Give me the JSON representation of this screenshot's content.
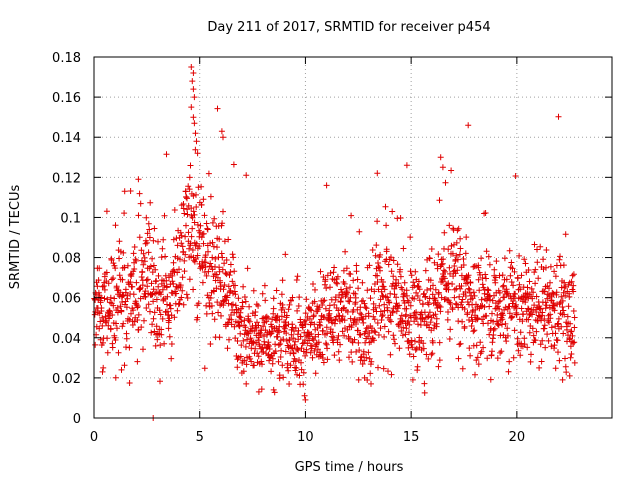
{
  "chart_data": {
    "type": "scatter",
    "title": "Day 211 of 2017, SRMTID for receiver p454",
    "xlabel": "GPS time / hours",
    "ylabel": "SRMTID / TECUs",
    "xlim": [
      0,
      24.5
    ],
    "ylim": [
      0,
      0.18
    ],
    "xticks": [
      0,
      5,
      10,
      15,
      20
    ],
    "xtick_labels": [
      "0",
      "5",
      "10",
      "15",
      "20"
    ],
    "yticks": [
      0,
      0.02,
      0.04,
      0.06,
      0.08,
      0.1,
      0.12,
      0.14,
      0.16,
      0.18
    ],
    "ytick_labels": [
      "0",
      "0.02",
      "0.04",
      "0.06",
      "0.08",
      "0.1",
      "0.12",
      "0.14",
      "0.16",
      "0.18"
    ],
    "grid": true,
    "marker": "+",
    "color": "#e00000",
    "series": [
      {
        "name": "SRMTID",
        "x_range": [
          0,
          22.75
        ],
        "n_points": 1900,
        "profile": [
          {
            "x": 0.0,
            "median": 0.05,
            "spread": 0.012
          },
          {
            "x": 1.0,
            "median": 0.056,
            "spread": 0.013
          },
          {
            "x": 2.0,
            "median": 0.062,
            "spread": 0.014
          },
          {
            "x": 2.5,
            "median": 0.07,
            "spread": 0.016
          },
          {
            "x": 3.0,
            "median": 0.058,
            "spread": 0.014
          },
          {
            "x": 3.5,
            "median": 0.055,
            "spread": 0.012
          },
          {
            "x": 4.0,
            "median": 0.07,
            "spread": 0.015
          },
          {
            "x": 4.5,
            "median": 0.092,
            "spread": 0.018
          },
          {
            "x": 5.0,
            "median": 0.085,
            "spread": 0.02
          },
          {
            "x": 5.5,
            "median": 0.072,
            "spread": 0.016
          },
          {
            "x": 6.0,
            "median": 0.068,
            "spread": 0.016
          },
          {
            "x": 6.5,
            "median": 0.06,
            "spread": 0.014
          },
          {
            "x": 7.0,
            "median": 0.042,
            "spread": 0.01
          },
          {
            "x": 8.0,
            "median": 0.04,
            "spread": 0.01
          },
          {
            "x": 9.0,
            "median": 0.042,
            "spread": 0.011
          },
          {
            "x": 10.0,
            "median": 0.04,
            "spread": 0.011
          },
          {
            "x": 11.0,
            "median": 0.052,
            "spread": 0.013
          },
          {
            "x": 12.0,
            "median": 0.058,
            "spread": 0.014
          },
          {
            "x": 13.0,
            "median": 0.04,
            "spread": 0.011
          },
          {
            "x": 13.5,
            "median": 0.065,
            "spread": 0.016
          },
          {
            "x": 14.0,
            "median": 0.058,
            "spread": 0.014
          },
          {
            "x": 15.0,
            "median": 0.048,
            "spread": 0.012
          },
          {
            "x": 16.0,
            "median": 0.055,
            "spread": 0.014
          },
          {
            "x": 17.0,
            "median": 0.068,
            "spread": 0.015
          },
          {
            "x": 18.0,
            "median": 0.055,
            "spread": 0.014
          },
          {
            "x": 19.0,
            "median": 0.056,
            "spread": 0.014
          },
          {
            "x": 20.0,
            "median": 0.058,
            "spread": 0.013
          },
          {
            "x": 21.0,
            "median": 0.055,
            "spread": 0.013
          },
          {
            "x": 22.0,
            "median": 0.056,
            "spread": 0.013
          },
          {
            "x": 22.75,
            "median": 0.05,
            "spread": 0.012
          }
        ],
        "notable_points": [
          [
            4.6,
            0.175
          ],
          [
            4.7,
            0.172
          ],
          [
            4.65,
            0.168
          ],
          [
            4.7,
            0.164
          ],
          [
            4.75,
            0.16
          ],
          [
            4.6,
            0.155
          ],
          [
            4.7,
            0.15
          ],
          [
            4.75,
            0.147
          ],
          [
            4.8,
            0.142
          ],
          [
            4.85,
            0.138
          ],
          [
            4.9,
            0.132
          ],
          [
            6.05,
            0.143
          ],
          [
            6.1,
            0.14
          ],
          [
            7.2,
            0.121
          ],
          [
            17.7,
            0.146
          ],
          [
            14.8,
            0.126
          ],
          [
            16.4,
            0.13
          ],
          [
            16.5,
            0.125
          ],
          [
            13.4,
            0.122
          ],
          [
            11.0,
            0.116
          ],
          [
            2.1,
            0.119
          ],
          [
            10.0,
            0.009
          ],
          [
            7.8,
            0.013
          ],
          [
            8.5,
            0.014
          ],
          [
            13.1,
            0.017
          ],
          [
            12.8,
            0.02
          ],
          [
            22.5,
            0.021
          ],
          [
            0.4,
            0.023
          ],
          [
            1.3,
            0.024
          ],
          [
            2.8,
            0.0
          ]
        ]
      }
    ]
  }
}
